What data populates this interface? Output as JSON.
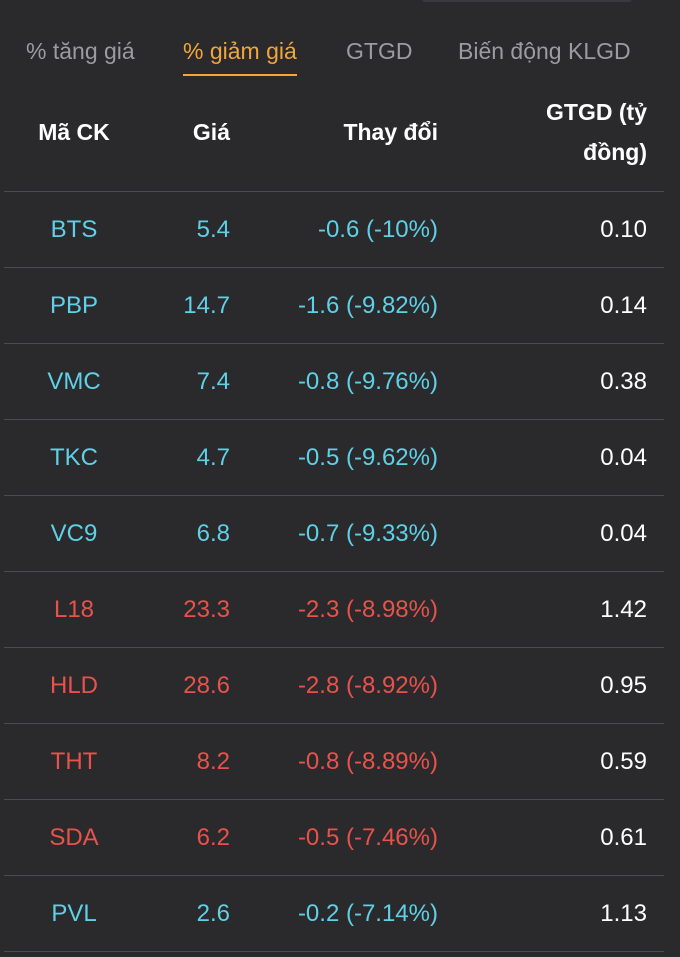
{
  "tabs": [
    {
      "label": "% tăng giá",
      "active": false
    },
    {
      "label": "% giảm giá",
      "active": true
    },
    {
      "label": "GTGD",
      "active": false
    },
    {
      "label": "Biến động KLGD",
      "active": false
    }
  ],
  "table": {
    "headers": {
      "symbol": "Mã CK",
      "price": "Giá",
      "change": "Thay đổi",
      "value_line1": "GTGD (tỷ",
      "value_line2": "đồng)"
    },
    "rows": [
      {
        "symbol": "BTS",
        "price": "5.4",
        "change": "-0.6 (-10%)",
        "value": "0.10",
        "tone": "floor"
      },
      {
        "symbol": "PBP",
        "price": "14.7",
        "change": "-1.6 (-9.82%)",
        "value": "0.14",
        "tone": "floor"
      },
      {
        "symbol": "VMC",
        "price": "7.4",
        "change": "-0.8 (-9.76%)",
        "value": "0.38",
        "tone": "floor"
      },
      {
        "symbol": "TKC",
        "price": "4.7",
        "change": "-0.5 (-9.62%)",
        "value": "0.04",
        "tone": "floor"
      },
      {
        "symbol": "VC9",
        "price": "6.8",
        "change": "-0.7 (-9.33%)",
        "value": "0.04",
        "tone": "floor"
      },
      {
        "symbol": "L18",
        "price": "23.3",
        "change": "-2.3 (-8.98%)",
        "value": "1.42",
        "tone": "down"
      },
      {
        "symbol": "HLD",
        "price": "28.6",
        "change": "-2.8 (-8.92%)",
        "value": "0.95",
        "tone": "down"
      },
      {
        "symbol": "THT",
        "price": "8.2",
        "change": "-0.8 (-8.89%)",
        "value": "0.59",
        "tone": "down"
      },
      {
        "symbol": "SDA",
        "price": "6.2",
        "change": "-0.5 (-7.46%)",
        "value": "0.61",
        "tone": "down"
      },
      {
        "symbol": "PVL",
        "price": "2.6",
        "change": "-0.2 (-7.14%)",
        "value": "1.13",
        "tone": "floor"
      }
    ]
  },
  "colors": {
    "floor": "#5fd0e6",
    "down": "#e8524a",
    "active_tab": "#f0a63a",
    "background": "#2a2a2d"
  }
}
